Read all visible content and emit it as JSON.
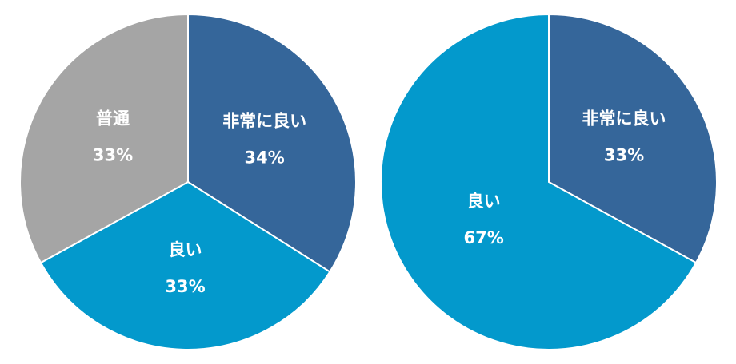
{
  "chart_data": [
    {
      "type": "pie",
      "categories": [
        "非常に良い",
        "良い",
        "普通"
      ],
      "values": [
        34,
        33,
        33
      ],
      "value_labels": [
        "34%",
        "33%",
        "33%"
      ],
      "colors": [
        "#35669a",
        "#0399cc",
        "#a5a5a5"
      ]
    },
    {
      "type": "pie",
      "categories": [
        "非常に良い",
        "良い"
      ],
      "values": [
        33,
        67
      ],
      "value_labels": [
        "33%",
        "67%"
      ],
      "colors": [
        "#35669a",
        "#0399cc"
      ]
    }
  ]
}
